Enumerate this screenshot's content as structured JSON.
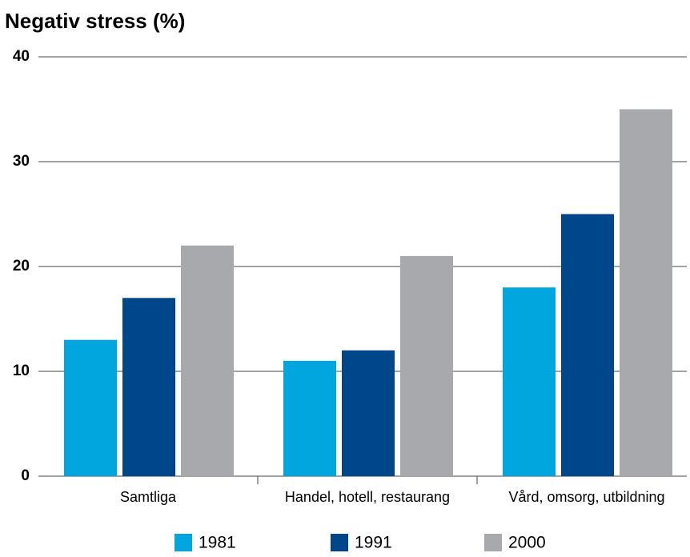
{
  "chart_data": {
    "type": "bar",
    "title": "Negativ stress (%)",
    "categories": [
      "Samtliga",
      "Handel, hotell, restaurang",
      "Vård, omsorg, utbildning"
    ],
    "series": [
      {
        "name": "1981",
        "color": "#00a6dd",
        "values": [
          13,
          11,
          18
        ]
      },
      {
        "name": "1991",
        "color": "#00468b",
        "values": [
          17,
          12,
          25
        ]
      },
      {
        "name": "2000",
        "color": "#a7a9ac",
        "values": [
          22,
          21,
          35
        ]
      }
    ],
    "ylim": [
      0,
      40
    ],
    "yticks": [
      0,
      10,
      20,
      30,
      40
    ],
    "grid": true,
    "legend": "bottom"
  }
}
